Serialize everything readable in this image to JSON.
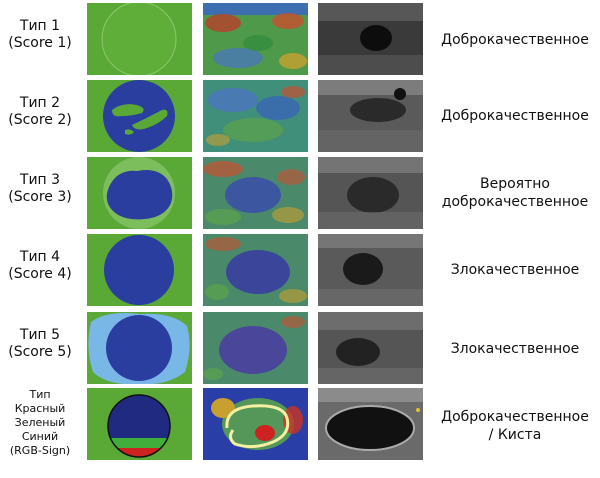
{
  "rows": [
    {
      "title": "Тип 1",
      "score": "(Score 1)",
      "result": "Доброкачественное"
    },
    {
      "title": "Тип 2",
      "score": "(Score 2)",
      "result": "Доброкачественное"
    },
    {
      "title": "Тип 3",
      "score": "(Score 3)",
      "result": "Вероятно доброкачественное"
    },
    {
      "title": "Тип 4",
      "score": "(Score 4)",
      "result": "Злокачественное"
    },
    {
      "title": "Тип 5",
      "score": "(Score 5)",
      "result": "Злокачественное"
    },
    {
      "title_lines": [
        "Тип",
        "Красный",
        "Зеленый",
        "Синий",
        "(RGB-Sign)"
      ],
      "result_lines": [
        "Доброкачественное",
        "/ Киста"
      ]
    }
  ],
  "colors": {
    "green_bg": "#5aa836",
    "blue_lesion": "#2a3ea0",
    "light_blue_rim": "#79b7e6",
    "red_band": "#cc2222"
  }
}
